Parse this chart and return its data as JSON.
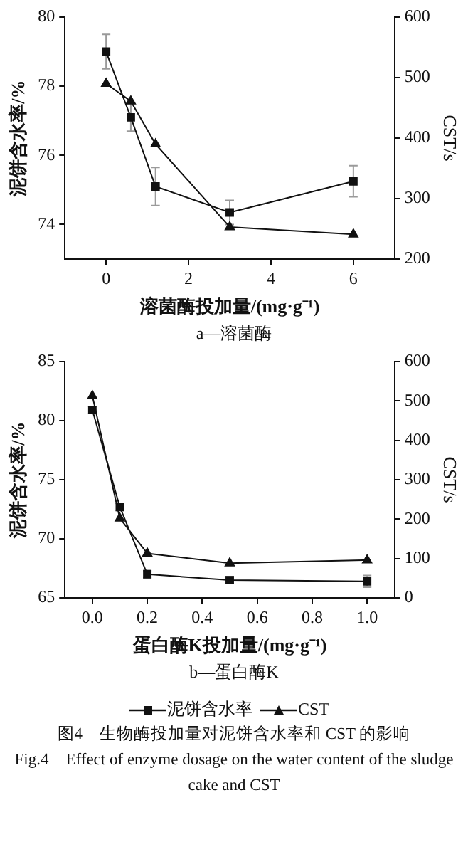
{
  "chart_data": [
    {
      "type": "line",
      "title": "a—溶菌酶",
      "xlabel": "溶菌酶投加量/(mg·g⁻¹)",
      "ylabel": "泥饼含水率/%",
      "y2label": "CST/s",
      "xlim": [
        -1,
        7
      ],
      "xticks": [
        0,
        2,
        4,
        6
      ],
      "ylim": [
        73,
        80
      ],
      "yticks": [
        74,
        76,
        78,
        80
      ],
      "y2lim": [
        200,
        600
      ],
      "y2ticks": [
        200,
        300,
        400,
        500,
        600
      ],
      "grid": false,
      "legend": false,
      "series": [
        {
          "color": "#111111",
          "marker": "square",
          "x": [
            0,
            0.6,
            1.2,
            3,
            6
          ],
          "values": [
            79.0,
            77.1,
            75.1,
            74.35,
            75.25
          ],
          "errors": [
            0.5,
            0.4,
            0.55,
            0.35,
            0.45
          ]
        },
        {
          "color": "#111111",
          "marker": "triangle",
          "axis": "y2",
          "x": [
            0,
            0.6,
            1.2,
            3,
            6
          ],
          "values": [
            490,
            461,
            390,
            253,
            241
          ]
        }
      ]
    },
    {
      "type": "line",
      "title": "b—蛋白酶K",
      "xlabel": "蛋白酶K投加量/(mg·g⁻¹)",
      "ylabel": "泥饼含水率/%",
      "y2label": "CST/s",
      "xlim": [
        -0.1,
        1.1
      ],
      "xticks": [
        {
          "value": 0,
          "label": "0.0"
        },
        0.2,
        0.4,
        0.6,
        0.8,
        {
          "value": 1,
          "label": "1.0"
        }
      ],
      "ylim": [
        65,
        85
      ],
      "yticks": [
        65,
        70,
        75,
        80,
        85
      ],
      "y2lim": [
        0,
        600
      ],
      "y2ticks": [
        0,
        100,
        200,
        300,
        400,
        500,
        600
      ],
      "grid": false,
      "legend": "bottom",
      "annotations": [
        "图4　生物酶投加量对泥饼含水率和 CST 的影响",
        "Fig.4　Effect of enzyme dosage on the water content of the sludge cake and CST"
      ],
      "series": [
        {
          "name": "泥饼含水率",
          "color": "#111111",
          "marker": "square",
          "x": [
            0,
            0.1,
            0.2,
            0.5,
            1.0
          ],
          "values": [
            80.9,
            72.7,
            67.0,
            66.5,
            66.4
          ],
          "errors": [
            0.3,
            0.3,
            0.3,
            0.3,
            0.5
          ]
        },
        {
          "name": "CST",
          "color": "#111111",
          "marker": "triangle",
          "axis": "y2",
          "x": [
            0,
            0.1,
            0.2,
            0.5,
            1.0
          ],
          "values": [
            513,
            202,
            113,
            88,
            96
          ]
        }
      ]
    }
  ]
}
